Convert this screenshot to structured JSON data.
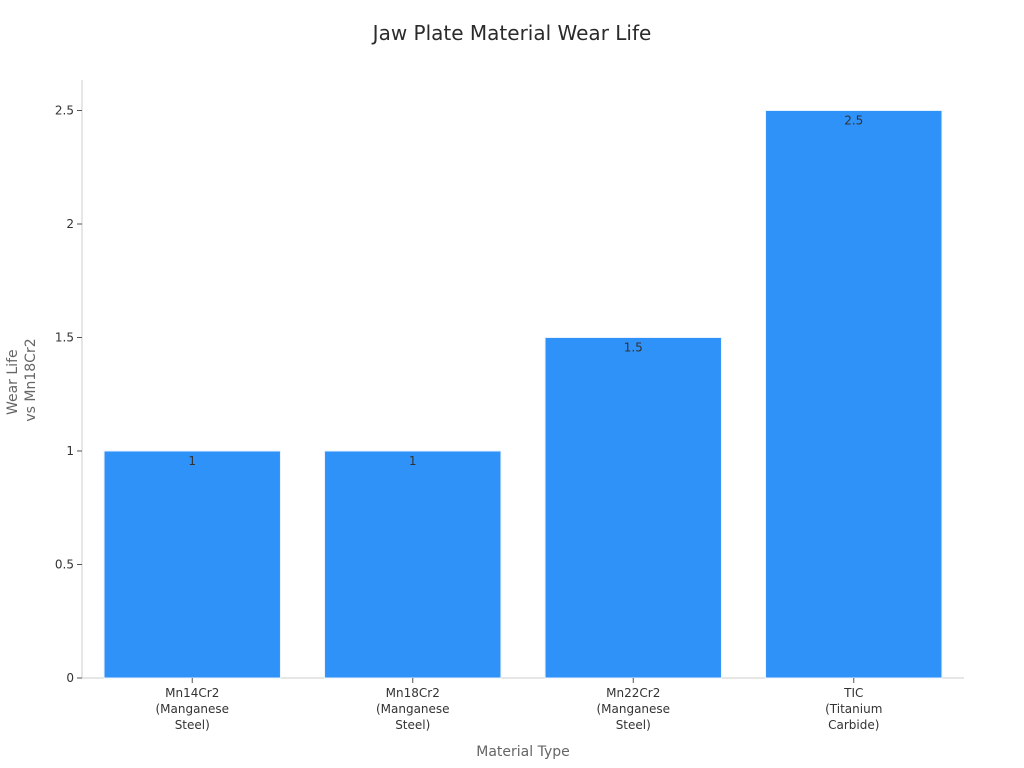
{
  "chart_data": {
    "type": "bar",
    "title": "Jaw Plate Material Wear Life",
    "xlabel": "Material Type",
    "ylabel": [
      "Wear Life",
      "vs Mn18Cr2"
    ],
    "categories": [
      [
        "Mn14Cr2",
        "(Manganese",
        "Steel)"
      ],
      [
        "Mn18Cr2",
        "(Manganese",
        "Steel)"
      ],
      [
        "Mn22Cr2",
        "(Manganese",
        "Steel)"
      ],
      [
        "TIC",
        "(Titanium",
        "Carbide)"
      ]
    ],
    "values": [
      1,
      1,
      1.5,
      2.5
    ],
    "data_labels": [
      "1",
      "1",
      "1.5",
      "2.5"
    ],
    "yticks": [
      0,
      0.5,
      1,
      1.5,
      2,
      2.5
    ],
    "ytick_labels": [
      "0",
      "0.5",
      "1",
      "1.5",
      "2",
      "2.5"
    ],
    "ylim": [
      0,
      2.63
    ],
    "bar_color": "#2f92f9",
    "grid": false,
    "legend": "none"
  }
}
